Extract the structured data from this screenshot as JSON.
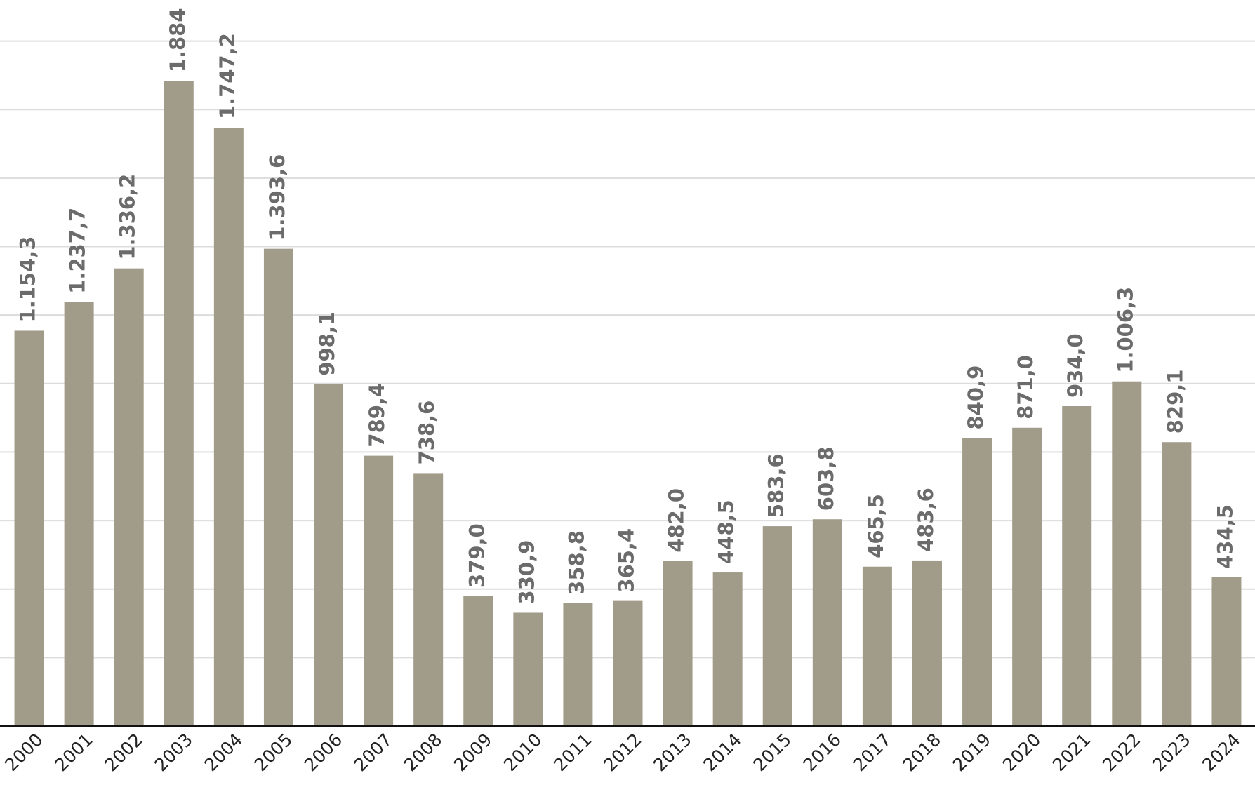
{
  "chart_data": {
    "type": "bar",
    "categories": [
      "2000",
      "2001",
      "2002",
      "2003",
      "2004",
      "2005",
      "2006",
      "2007",
      "2008",
      "2009",
      "2010",
      "2011",
      "2012",
      "2013",
      "2014",
      "2015",
      "2016",
      "2017",
      "2018",
      "2019",
      "2020",
      "2021",
      "2022",
      "2023",
      "2024"
    ],
    "values": [
      1154.3,
      1237.7,
      1336.2,
      1884,
      1747.2,
      1393.6,
      998.1,
      789.4,
      738.6,
      379.0,
      330.9,
      358.8,
      365.4,
      482.0,
      448.5,
      583.6,
      603.8,
      465.5,
      483.6,
      840.9,
      871.0,
      934.0,
      1006.3,
      829.1,
      434.5
    ],
    "value_labels": [
      "1.154,3",
      "1.237,7",
      "1.336,2",
      "1.884",
      "1.747,2",
      "1.393,6",
      "998,1",
      "789,4",
      "738,6",
      "379,0",
      "330,9",
      "358,8",
      "365,4",
      "482,0",
      "448,5",
      "583,6",
      "603,8",
      "465,5",
      "483,6",
      "840,9",
      "871,0",
      "934,0",
      "1.006,3",
      "829,1",
      "434,5"
    ],
    "color": "#a19c89",
    "ylim": [
      0,
      2120
    ],
    "yticks": [
      200,
      400,
      600,
      800,
      1000,
      1200,
      1400,
      1600,
      1800,
      2000
    ],
    "grid": true
  }
}
